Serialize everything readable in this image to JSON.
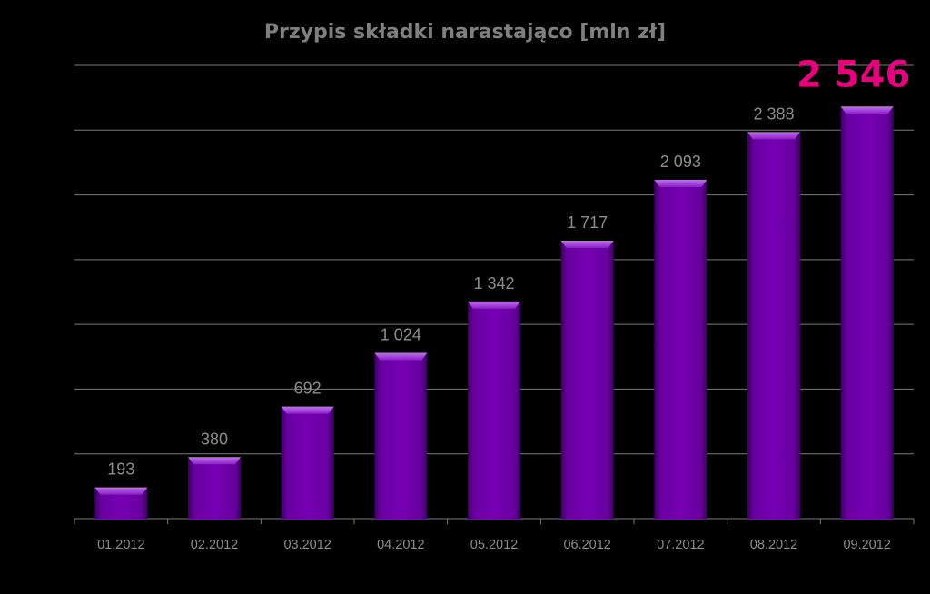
{
  "chart_data": {
    "type": "bar",
    "title": "Przypis składki narastająco [mln zł]",
    "categories": [
      "01.2012",
      "02.2012",
      "03.2012",
      "04.2012",
      "05.2012",
      "06.2012",
      "07.2012",
      "08.2012",
      "09.2012"
    ],
    "values": [
      193,
      380,
      692,
      1024,
      1342,
      1717,
      2093,
      2388,
      2546
    ],
    "value_labels": [
      "193",
      "380",
      "692",
      "1 024",
      "1 342",
      "1 717",
      "2 093",
      "2 388",
      "2 546"
    ],
    "highlight_index": 8,
    "ylim": [
      0,
      2800
    ],
    "y_grid_step": 400,
    "grid": true,
    "legend": "none"
  },
  "colors": {
    "background": "#000000",
    "bar": "#6a00a0",
    "bar_top": "#a640dc",
    "grid": "#7a7a7a",
    "text": "#8c8c8c",
    "title": "#7f7f7f",
    "highlight": "#e6007e"
  }
}
